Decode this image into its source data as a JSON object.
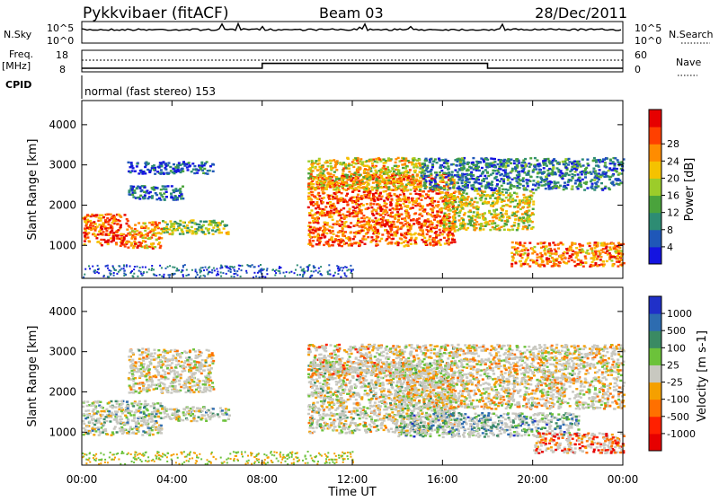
{
  "header": {
    "station": "Pykkvibaer (fitACF)",
    "beam": "Beam 03",
    "date": "28/Dec/2011"
  },
  "sky_panel": {
    "left_label": "N.Sky",
    "right_label": "N.Search",
    "left_ticks": [
      "10^5",
      "10^0"
    ],
    "right_ticks": [
      "10^5",
      "10^0"
    ]
  },
  "freq_panel": {
    "left_label_top": "Freq.",
    "left_label_bottom": "[MHz]",
    "right_label": "Nave",
    "left_ticks": [
      "18",
      "8"
    ],
    "right_ticks": [
      "60",
      "0"
    ],
    "freq_steps": [
      {
        "start": "00:00",
        "end": "08:00",
        "level": 8
      },
      {
        "start": "08:00",
        "end": "18:00",
        "level": 11
      },
      {
        "start": "18:00",
        "end": "24:00",
        "level": 8
      }
    ]
  },
  "cpid": {
    "label": "CPID",
    "value": "normal (fast stereo) 153"
  },
  "x_axis": {
    "label": "Time UT",
    "ticks": [
      "00:00",
      "04:00",
      "08:00",
      "12:00",
      "16:00",
      "20:00",
      "00:00"
    ]
  },
  "chart_data": [
    {
      "type": "heatmap",
      "parameter": "Power",
      "ylabel": "Slant Range [km]",
      "ylim": [
        180,
        4600
      ],
      "yticks": [
        "1000",
        "2000",
        "3000",
        "4000"
      ],
      "xlim_hours": [
        0,
        24
      ],
      "colorbar_label": "Power [dB]",
      "colorbar_ticks": [
        "4",
        "8",
        "12",
        "16",
        "20",
        "24",
        "28"
      ],
      "colorbar_colors": [
        "#1414e0",
        "#1f57b8",
        "#2d8c73",
        "#4aa33c",
        "#9ccc2a",
        "#f5c200",
        "#ff8c00",
        "#ff4000",
        "#e60000"
      ],
      "echo_regions": [
        {
          "t0": 0.0,
          "t1": 2.0,
          "r0": 1000,
          "r1": 1800,
          "level": 0.8
        },
        {
          "t0": 2.0,
          "t1": 3.5,
          "r0": 950,
          "r1": 1600,
          "level": 0.7
        },
        {
          "t0": 3.5,
          "t1": 6.5,
          "r0": 1300,
          "r1": 1650,
          "level": 0.45
        },
        {
          "t0": 2.0,
          "t1": 4.5,
          "r0": 2150,
          "r1": 2500,
          "level": 0.2
        },
        {
          "t0": 2.0,
          "t1": 5.8,
          "r0": 2800,
          "r1": 3100,
          "level": 0.15
        },
        {
          "t0": 10.0,
          "t1": 16.5,
          "r0": 1000,
          "r1": 2800,
          "level": 0.8
        },
        {
          "t0": 10.0,
          "t1": 15.0,
          "r0": 2400,
          "r1": 3200,
          "level": 0.6
        },
        {
          "t0": 16.0,
          "t1": 20.0,
          "r0": 1400,
          "r1": 2400,
          "level": 0.55
        },
        {
          "t0": 15.0,
          "t1": 24.0,
          "r0": 2400,
          "r1": 3200,
          "level": 0.25
        },
        {
          "t0": 19.0,
          "t1": 24.0,
          "r0": 500,
          "r1": 1100,
          "level": 0.75
        }
      ]
    },
    {
      "type": "heatmap",
      "parameter": "Velocity",
      "ylabel": "Slant Range [km]",
      "ylim": [
        180,
        4600
      ],
      "yticks": [
        "1000",
        "2000",
        "3000",
        "4000"
      ],
      "xlim_hours": [
        0,
        24
      ],
      "colorbar_label": "Velocity [m s-1]",
      "colorbar_ticks": [
        "1000",
        "500",
        "100",
        "25",
        "-25",
        "-100",
        "-500",
        "-1000"
      ],
      "colorbar_colors": [
        "#2030c8",
        "#2d6cb0",
        "#3a8a63",
        "#6cc23a",
        "#c8c8c0",
        "#f5a000",
        "#ff7000",
        "#ff2000",
        "#e60000"
      ],
      "echo_regions": [
        {
          "t0": 0.0,
          "t1": 3.5,
          "r0": 950,
          "r1": 1800,
          "level": 0.4
        },
        {
          "t0": 3.5,
          "t1": 6.5,
          "r0": 1300,
          "r1": 1650,
          "level": 0.42
        },
        {
          "t0": 2.0,
          "t1": 5.8,
          "r0": 2000,
          "r1": 3100,
          "level": 0.55
        },
        {
          "t0": 10.0,
          "t1": 16.5,
          "r0": 1000,
          "r1": 2800,
          "level": 0.5
        },
        {
          "t0": 10.0,
          "t1": 14.0,
          "r0": 2400,
          "r1": 3200,
          "level": 0.6
        },
        {
          "t0": 14.0,
          "t1": 24.0,
          "r0": 1600,
          "r1": 3200,
          "level": 0.55
        },
        {
          "t0": 14.0,
          "t1": 22.0,
          "r0": 900,
          "r1": 1500,
          "level": 0.3
        },
        {
          "t0": 20.0,
          "t1": 24.0,
          "r0": 500,
          "r1": 1000,
          "level": 0.8
        }
      ]
    }
  ]
}
